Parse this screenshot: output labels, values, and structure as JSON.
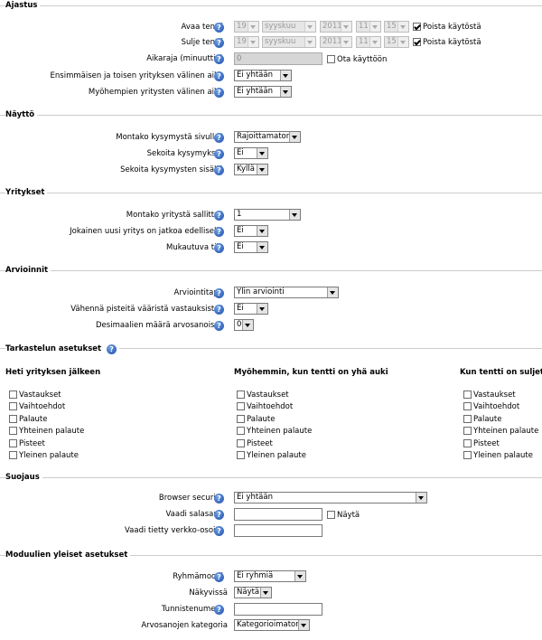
{
  "sections": {
    "ajastus": {
      "title": "Ajastus",
      "avaa_label": "Avaa tentti",
      "sulje_label": "Sulje tentti",
      "date_day": "19",
      "date_month": "syyskuu",
      "date_year": "2011",
      "date_hour": "11",
      "date_minute": "15",
      "disable_label": "Poista käytöstä",
      "aikaraja_label": "Aikaraja (minuuttia)",
      "aikaraja_value": "0",
      "ota_kayttoon": "Ota käyttöön",
      "ensimmaisen_label": "Ensimmäisen ja toisen yrityksen välinen aika",
      "ensimmaisen_value": "Ei yhtään",
      "myohempien_label": "Myöhempien yritysten välinen aika",
      "myohempien_value": "Ei yhtään"
    },
    "naytto": {
      "title": "Näyttö",
      "montako_label": "Montako kysymystä sivulla?",
      "montako_value": "Rajoittamaton",
      "sekoita_label": "Sekoita kysymykset",
      "sekoita_value": "Ei",
      "sisalla_label": "Sekoita kysymysten sisällä",
      "sisalla_value": "Kyllä"
    },
    "yritykset": {
      "title": "Yritykset",
      "sallittu_label": "Montako yritystä sallittu?",
      "sallittu_value": "1",
      "jatkoa_label": "Jokainen uusi yritys on jatkoa edelliselle",
      "jatkoa_value": "Ei",
      "mukautuva_label": "Mukautuva tila",
      "mukautuva_value": "Ei"
    },
    "arvioinnit": {
      "title": "Arvioinnit",
      "tapa_label": "Arviointitapa",
      "tapa_value": "Ylin arviointi",
      "vahenna_label": "Vähennä pisteitä vääristä vastauksista?",
      "vahenna_value": "Ei",
      "desimaalit_label": "Desimaalien määrä arvosanoissa",
      "desimaalit_value": "0"
    },
    "tarkastelu": {
      "title": "Tarkastelun asetukset",
      "columns": [
        "Heti yrityksen jälkeen",
        "Myöhemmin, kun tentti on yhä auki",
        "Kun tentti on suljettu"
      ],
      "options": [
        "Vastaukset",
        "Vaihtoehdot",
        "Palaute",
        "Yhteinen palaute",
        "Pisteet",
        "Yleinen palaute"
      ]
    },
    "suojaus": {
      "title": "Suojaus",
      "browser_label": "Browser security",
      "browser_value": "Ei yhtään",
      "salasana_label": "Vaadi salasana",
      "nayta_label": "Näytä",
      "verkko_label": "Vaadi tietty verkko-osoite"
    },
    "moduulit": {
      "title": "Moduulien yleiset asetukset",
      "ryhma_label": "Ryhmämoodi",
      "ryhma_value": "Ei ryhmiä",
      "nakyvissa_label": "Näkyvissä",
      "nakyvissa_value": "Näytä",
      "tunniste_label": "Tunnistenumero",
      "kategoria_label": "Arvosanojen kategoria",
      "kategoria_value": "Kategorioimaton"
    }
  },
  "help_icon_glyph": "?"
}
